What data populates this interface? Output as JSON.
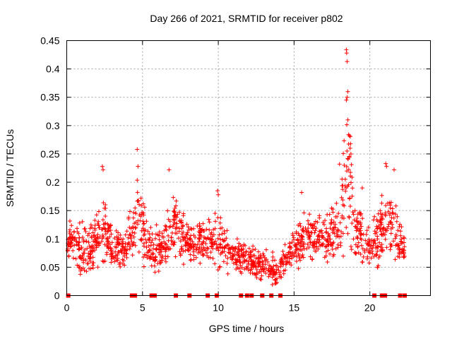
{
  "chart_data": {
    "type": "scatter",
    "title": "Day 266 of 2021, SRMTID for receiver p802",
    "xlabel": "GPS time / hours",
    "ylabel": "SRMTID / TECUs",
    "xlim": [
      0,
      24
    ],
    "ylim": [
      0,
      0.45
    ],
    "x_ticks": [
      0,
      5,
      10,
      15,
      20
    ],
    "y_ticks": [
      0,
      0.05,
      0.1,
      0.15,
      0.2,
      0.25,
      0.3,
      0.35,
      0.4,
      0.45
    ],
    "grid": true,
    "marker": "+",
    "color": "#ff0000",
    "series": [
      {
        "name": "SRMTID",
        "envelope": [
          {
            "x": 0.0,
            "lo": 0.05,
            "hi": 0.12
          },
          {
            "x": 0.3,
            "lo": 0.06,
            "hi": 0.17
          },
          {
            "x": 0.8,
            "lo": 0.02,
            "hi": 0.14
          },
          {
            "x": 1.5,
            "lo": 0.03,
            "hi": 0.13
          },
          {
            "x": 2.3,
            "lo": 0.04,
            "hi": 0.22
          },
          {
            "x": 3.0,
            "lo": 0.04,
            "hi": 0.14
          },
          {
            "x": 3.8,
            "lo": 0.04,
            "hi": 0.13
          },
          {
            "x": 4.7,
            "lo": 0.04,
            "hi": 0.26
          },
          {
            "x": 5.5,
            "lo": 0.03,
            "hi": 0.14
          },
          {
            "x": 6.5,
            "lo": 0.04,
            "hi": 0.14
          },
          {
            "x": 7.0,
            "lo": 0.05,
            "hi": 0.22
          },
          {
            "x": 8.0,
            "lo": 0.05,
            "hi": 0.14
          },
          {
            "x": 9.0,
            "lo": 0.04,
            "hi": 0.16
          },
          {
            "x": 10.0,
            "lo": 0.03,
            "hi": 0.18
          },
          {
            "x": 11.0,
            "lo": 0.03,
            "hi": 0.12
          },
          {
            "x": 12.0,
            "lo": 0.03,
            "hi": 0.1
          },
          {
            "x": 13.0,
            "lo": 0.02,
            "hi": 0.09
          },
          {
            "x": 14.0,
            "lo": 0.01,
            "hi": 0.08
          },
          {
            "x": 15.0,
            "lo": 0.04,
            "hi": 0.14
          },
          {
            "x": 16.0,
            "lo": 0.05,
            "hi": 0.16
          },
          {
            "x": 17.0,
            "lo": 0.05,
            "hi": 0.15
          },
          {
            "x": 18.0,
            "lo": 0.05,
            "hi": 0.2
          },
          {
            "x": 18.5,
            "lo": 0.05,
            "hi": 0.43
          },
          {
            "x": 19.0,
            "lo": 0.04,
            "hi": 0.2
          },
          {
            "x": 20.0,
            "lo": 0.04,
            "hi": 0.13
          },
          {
            "x": 21.0,
            "lo": 0.04,
            "hi": 0.23
          },
          {
            "x": 21.5,
            "lo": 0.05,
            "hi": 0.22
          },
          {
            "x": 22.3,
            "lo": 0.05,
            "hi": 0.11
          }
        ],
        "peaks": [
          {
            "x": 18.45,
            "y": 0.434
          },
          {
            "x": 18.47,
            "y": 0.428
          },
          {
            "x": 18.5,
            "y": 0.413
          },
          {
            "x": 18.55,
            "y": 0.36
          },
          {
            "x": 18.5,
            "y": 0.35
          },
          {
            "x": 18.45,
            "y": 0.345
          },
          {
            "x": 18.55,
            "y": 0.31
          },
          {
            "x": 18.6,
            "y": 0.284
          },
          {
            "x": 18.65,
            "y": 0.282
          },
          {
            "x": 18.7,
            "y": 0.26
          },
          {
            "x": 18.75,
            "y": 0.25
          },
          {
            "x": 4.65,
            "y": 0.258
          },
          {
            "x": 4.7,
            "y": 0.228
          },
          {
            "x": 2.35,
            "y": 0.228
          },
          {
            "x": 2.4,
            "y": 0.222
          },
          {
            "x": 6.75,
            "y": 0.222
          },
          {
            "x": 21.05,
            "y": 0.233
          },
          {
            "x": 21.1,
            "y": 0.228
          },
          {
            "x": 21.6,
            "y": 0.222
          },
          {
            "x": 9.95,
            "y": 0.185
          },
          {
            "x": 10.0,
            "y": 0.178
          },
          {
            "x": 15.5,
            "y": 0.182
          },
          {
            "x": 18.0,
            "y": 0.232
          },
          {
            "x": 19.5,
            "y": 0.19
          }
        ],
        "zeros_x": [
          0.1,
          4.3,
          4.5,
          5.6,
          5.8,
          7.2,
          8.1,
          9.3,
          9.9,
          11.5,
          11.9,
          12.2,
          12.9,
          13.5,
          14.1,
          20.3,
          20.8,
          21.0,
          22.0,
          22.3
        ]
      }
    ]
  }
}
